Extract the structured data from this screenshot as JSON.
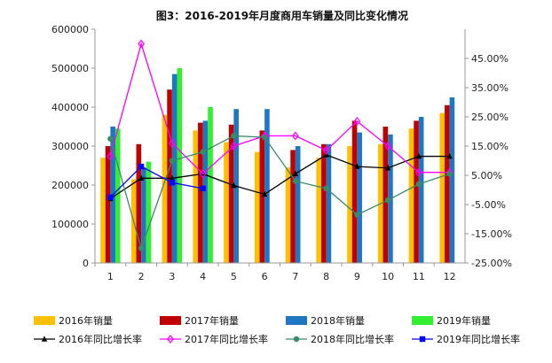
{
  "chart_data": {
    "type": "bar",
    "title": "图3：2016-2019年月度商用车销量及同比变化情况",
    "categories": [
      "1",
      "2",
      "3",
      "4",
      "5",
      "6",
      "7",
      "8",
      "9",
      "10",
      "11",
      "12"
    ],
    "ylim": [
      0,
      600000
    ],
    "y_ticks": [
      "0",
      "100000",
      "200000",
      "300000",
      "400000",
      "500000",
      "600000"
    ],
    "y2lim": [
      -25,
      55
    ],
    "y2_ticks": [
      "-25.00%",
      "-15.00%",
      "-5.00%",
      "5.00%",
      "15.00%",
      "25.00%",
      "35.00%",
      "45.00%"
    ],
    "grid": false,
    "legend_position": "bottom",
    "series": [
      {
        "name": "2016年销量",
        "type": "bar",
        "axis": "left",
        "color": "#ffc000",
        "values": [
          270000,
          215000,
          380000,
          340000,
          310000,
          285000,
          245000,
          270000,
          300000,
          305000,
          345000,
          385000
        ]
      },
      {
        "name": "2017年销量",
        "type": "bar",
        "axis": "left",
        "color": "#c00000",
        "values": [
          300000,
          305000,
          445000,
          360000,
          355000,
          340000,
          290000,
          305000,
          365000,
          350000,
          365000,
          405000
        ]
      },
      {
        "name": "2018年销量",
        "type": "bar",
        "axis": "left",
        "color": "#1f77c4",
        "values": [
          350000,
          245000,
          485000,
          365000,
          395000,
          395000,
          300000,
          305000,
          335000,
          330000,
          375000,
          425000
        ]
      },
      {
        "name": "2019年销量",
        "type": "bar",
        "axis": "left",
        "color": "#33ee33",
        "values": [
          345000,
          260000,
          500000,
          400000,
          null,
          null,
          null,
          null,
          null,
          null,
          null,
          null
        ]
      },
      {
        "name": "2016年同比增长率",
        "type": "line",
        "axis": "right",
        "color": "#000000",
        "marker": "triangle",
        "values": [
          -3.0,
          4.0,
          4.0,
          5.5,
          1.5,
          -1.5,
          5.5,
          12.0,
          8.0,
          7.5,
          11.5,
          11.5
        ]
      },
      {
        "name": "2017年同比增长率",
        "type": "line",
        "axis": "right",
        "color": "#ff00ff",
        "marker": "diamond",
        "values": [
          11.5,
          50.0,
          16.0,
          5.5,
          15.0,
          18.5,
          18.5,
          13.5,
          23.5,
          15.0,
          6.0,
          6.0
        ]
      },
      {
        "name": "2018年同比增长率",
        "type": "line",
        "axis": "right",
        "color": "#3a8a6b",
        "marker": "circle",
        "values": [
          17.5,
          -20.0,
          10.0,
          13.0,
          18.5,
          18.0,
          3.0,
          0.5,
          -8.5,
          -3.5,
          2.0,
          5.5
        ]
      },
      {
        "name": "2019年同比增长率",
        "type": "line",
        "axis": "right",
        "color": "#0000ff",
        "marker": "square",
        "values": [
          -2.5,
          8.0,
          2.5,
          0.5,
          null,
          null,
          null,
          null,
          null,
          null,
          null,
          null
        ]
      }
    ]
  }
}
